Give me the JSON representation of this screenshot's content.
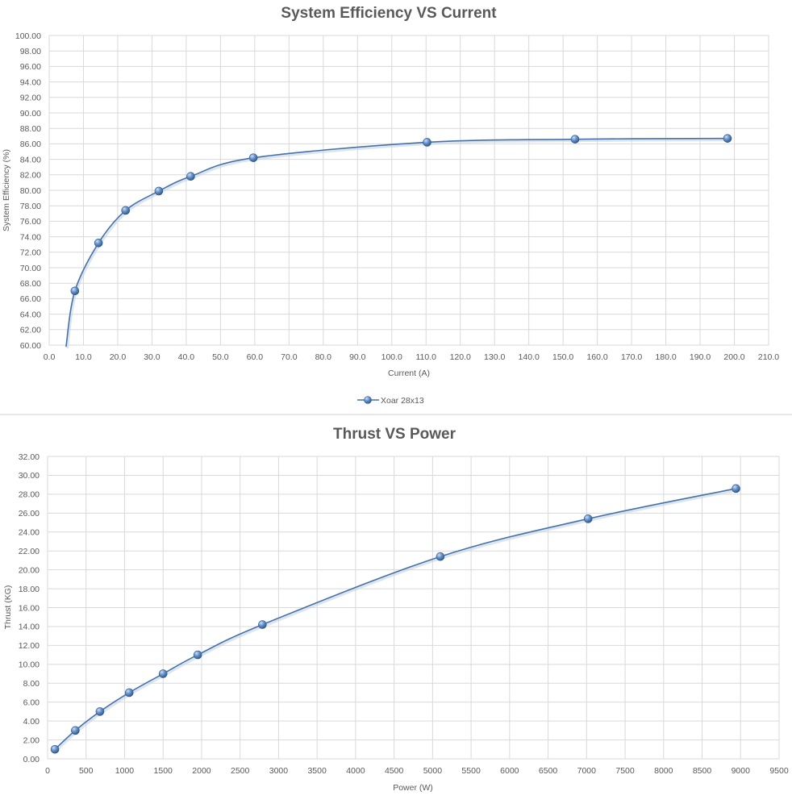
{
  "colors": {
    "series": "#4472a8",
    "marker_light": "#8fb3de",
    "marker_dark": "#2f5a8f",
    "grid": "#d9d9d9",
    "text": "#595959"
  },
  "legend": {
    "label": "Xoar 28x13"
  },
  "chart_data": [
    {
      "type": "line",
      "title": "System Efficiency VS Current",
      "xlabel": "Current (A)",
      "ylabel": "System Efficiency (%)",
      "xlim": [
        0,
        210
      ],
      "ylim": [
        60,
        100
      ],
      "xstep": 10,
      "ystep": 2,
      "xdecimals": 1,
      "ydecimals": 2,
      "grid": true,
      "legend": "bottom",
      "series": [
        {
          "name": "Xoar 28x13",
          "x": [
            7.5,
            14.4,
            22.3,
            32.0,
            41.3,
            59.6,
            110.3,
            153.5,
            198.0
          ],
          "y": [
            67.0,
            73.2,
            77.4,
            79.9,
            81.8,
            84.2,
            86.2,
            86.6,
            86.7
          ]
        }
      ]
    },
    {
      "type": "line",
      "title": "Thrust VS Power",
      "xlabel": "Power (W)",
      "ylabel": "Thrust (KG)",
      "xlim": [
        0,
        9500
      ],
      "ylim": [
        0,
        32
      ],
      "xstep": 500,
      "ystep": 2,
      "xdecimals": 0,
      "ydecimals": 2,
      "grid": true,
      "series": [
        {
          "name": "Xoar 28x13",
          "x": [
            95,
            360,
            680,
            1060,
            1500,
            1950,
            2790,
            5100,
            7020,
            8940
          ],
          "y": [
            1.0,
            3.0,
            5.0,
            7.0,
            9.0,
            11.0,
            14.2,
            21.4,
            25.4,
            28.6
          ]
        }
      ]
    }
  ]
}
